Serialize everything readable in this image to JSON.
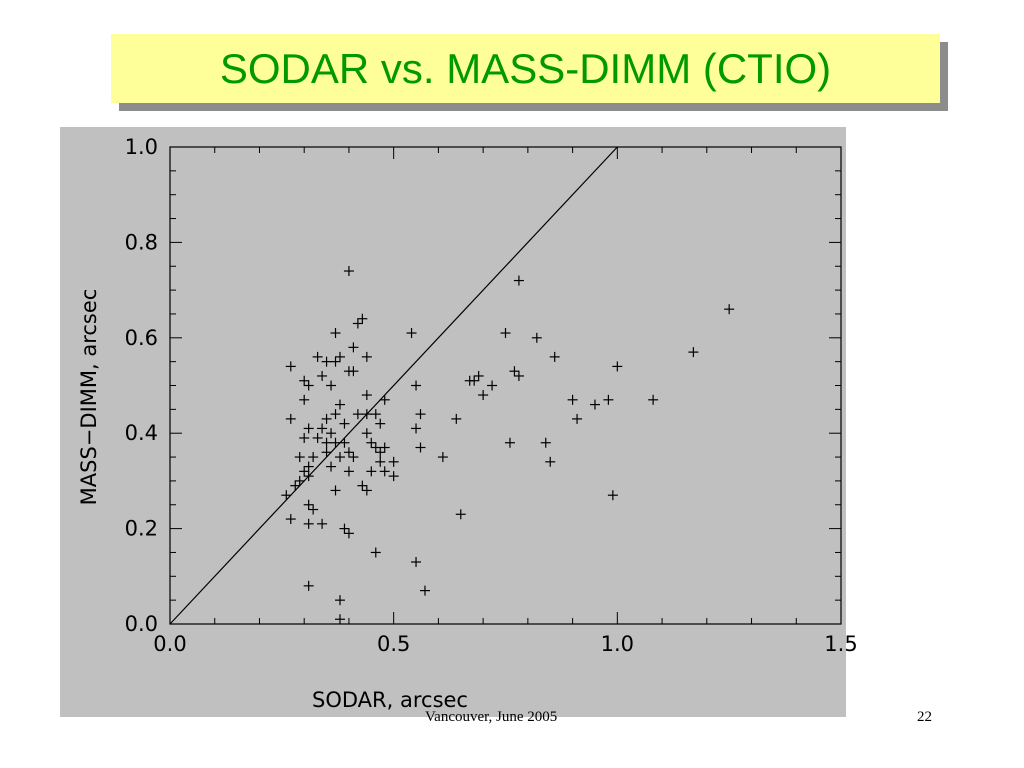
{
  "slide": {
    "title": "SODAR vs. MASS-DIMM (CTIO)",
    "footer": "Vancouver, June 2005",
    "page_number": "22"
  },
  "colors": {
    "title_text": "#009900",
    "title_bg": "#ffff99",
    "plot_bg": "#c0c0c0"
  },
  "chart_data": {
    "type": "scatter",
    "marker": "plus",
    "xlabel": "SODAR, arcsec",
    "ylabel": "MASS−DIMM, arcsec",
    "xlim": [
      0.0,
      1.5
    ],
    "ylim": [
      0.0,
      1.0
    ],
    "x_ticks": [
      "0.0",
      "0.5",
      "1.0",
      "1.5"
    ],
    "y_ticks": [
      "0.0",
      "0.2",
      "0.4",
      "0.6",
      "0.8",
      "1.0"
    ],
    "grid": false,
    "reference_line": {
      "x": [
        0.0,
        1.0
      ],
      "y": [
        0.0,
        1.0
      ]
    },
    "series": [
      {
        "points": [
          [
            0.4,
            0.74
          ],
          [
            0.78,
            0.72
          ],
          [
            1.25,
            0.66
          ],
          [
            0.43,
            0.64
          ],
          [
            0.42,
            0.63
          ],
          [
            0.37,
            0.61
          ],
          [
            0.54,
            0.61
          ],
          [
            0.75,
            0.61
          ],
          [
            0.82,
            0.6
          ],
          [
            0.41,
            0.58
          ],
          [
            1.17,
            0.57
          ],
          [
            0.38,
            0.56
          ],
          [
            0.33,
            0.56
          ],
          [
            0.44,
            0.56
          ],
          [
            0.86,
            0.56
          ],
          [
            0.37,
            0.55
          ],
          [
            0.35,
            0.55
          ],
          [
            0.27,
            0.54
          ],
          [
            0.4,
            0.53
          ],
          [
            0.41,
            0.53
          ],
          [
            0.77,
            0.53
          ],
          [
            0.78,
            0.52
          ],
          [
            0.3,
            0.51
          ],
          [
            0.34,
            0.52
          ],
          [
            0.55,
            0.5
          ],
          [
            0.31,
            0.5
          ],
          [
            0.36,
            0.5
          ],
          [
            0.67,
            0.51
          ],
          [
            0.68,
            0.51
          ],
          [
            0.69,
            0.52
          ],
          [
            0.72,
            0.5
          ],
          [
            1.0,
            0.54
          ],
          [
            0.3,
            0.47
          ],
          [
            0.38,
            0.46
          ],
          [
            0.44,
            0.48
          ],
          [
            0.7,
            0.48
          ],
          [
            0.48,
            0.47
          ],
          [
            0.9,
            0.47
          ],
          [
            0.95,
            0.46
          ],
          [
            0.98,
            0.47
          ],
          [
            1.08,
            0.47
          ],
          [
            0.37,
            0.44
          ],
          [
            0.35,
            0.43
          ],
          [
            0.42,
            0.44
          ],
          [
            0.44,
            0.44
          ],
          [
            0.46,
            0.44
          ],
          [
            0.27,
            0.43
          ],
          [
            0.56,
            0.44
          ],
          [
            0.64,
            0.43
          ],
          [
            0.91,
            0.43
          ],
          [
            0.39,
            0.42
          ],
          [
            0.47,
            0.42
          ],
          [
            0.31,
            0.41
          ],
          [
            0.34,
            0.41
          ],
          [
            0.36,
            0.4
          ],
          [
            0.44,
            0.4
          ],
          [
            0.55,
            0.41
          ],
          [
            0.3,
            0.39
          ],
          [
            0.33,
            0.39
          ],
          [
            0.35,
            0.38
          ],
          [
            0.37,
            0.38
          ],
          [
            0.39,
            0.38
          ],
          [
            0.45,
            0.38
          ],
          [
            0.76,
            0.38
          ],
          [
            0.84,
            0.38
          ],
          [
            0.35,
            0.36
          ],
          [
            0.4,
            0.36
          ],
          [
            0.46,
            0.37
          ],
          [
            0.47,
            0.36
          ],
          [
            0.48,
            0.37
          ],
          [
            0.56,
            0.37
          ],
          [
            0.29,
            0.35
          ],
          [
            0.32,
            0.35
          ],
          [
            0.38,
            0.35
          ],
          [
            0.41,
            0.35
          ],
          [
            0.47,
            0.34
          ],
          [
            0.5,
            0.34
          ],
          [
            0.61,
            0.35
          ],
          [
            0.85,
            0.34
          ],
          [
            0.3,
            0.32
          ],
          [
            0.31,
            0.33
          ],
          [
            0.36,
            0.33
          ],
          [
            0.4,
            0.32
          ],
          [
            0.45,
            0.32
          ],
          [
            0.48,
            0.32
          ],
          [
            0.5,
            0.31
          ],
          [
            0.29,
            0.3
          ],
          [
            0.31,
            0.31
          ],
          [
            0.28,
            0.29
          ],
          [
            0.37,
            0.28
          ],
          [
            0.43,
            0.29
          ],
          [
            0.44,
            0.28
          ],
          [
            0.26,
            0.27
          ],
          [
            0.99,
            0.27
          ],
          [
            0.31,
            0.25
          ],
          [
            0.32,
            0.24
          ],
          [
            0.65,
            0.23
          ],
          [
            0.27,
            0.22
          ],
          [
            0.31,
            0.21
          ],
          [
            0.34,
            0.21
          ],
          [
            0.39,
            0.2
          ],
          [
            0.4,
            0.19
          ],
          [
            0.46,
            0.15
          ],
          [
            0.55,
            0.13
          ],
          [
            0.31,
            0.08
          ],
          [
            0.57,
            0.07
          ],
          [
            0.38,
            0.05
          ],
          [
            0.38,
            0.01
          ]
        ]
      }
    ]
  }
}
